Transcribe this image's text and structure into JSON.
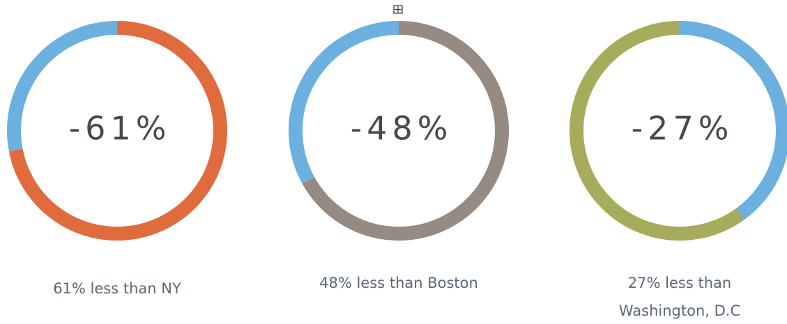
{
  "chart_data": [
    {
      "type": "donut",
      "title": "-61%",
      "caption": [
        "61% less than NY"
      ],
      "values": [
        72,
        28
      ],
      "colors": [
        "#e06b3c",
        "#6cb0e0"
      ]
    },
    {
      "type": "donut",
      "title": "-48%",
      "caption": [
        "48% less than Boston"
      ],
      "values": [
        67,
        33
      ],
      "colors": [
        "#968b82",
        "#6cb0e0"
      ]
    },
    {
      "type": "donut",
      "title": "-27%",
      "caption": [
        "27% less than",
        "Washington, D.C"
      ],
      "values": [
        40,
        60
      ],
      "colors": [
        "#6cb0e0",
        "#a7ab5c"
      ]
    }
  ]
}
